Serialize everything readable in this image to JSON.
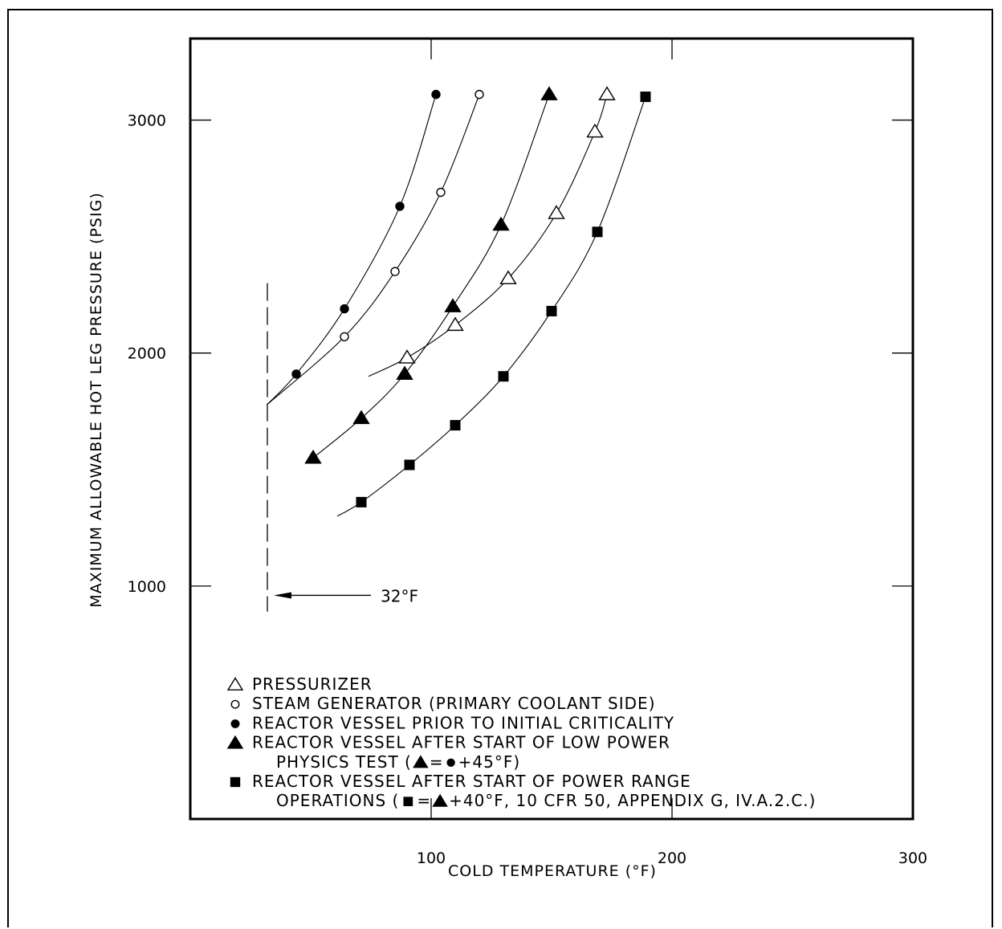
{
  "chart_data": {
    "type": "scatter",
    "title": "",
    "xlabel": "COLD TEMPERATURE (°F)",
    "ylabel": "MAXIMUM ALLOWABLE HOT LEG PRESSURE (PSIG)",
    "xlim": [
      0,
      300
    ],
    "ylim": [
      0,
      3350
    ],
    "x_ticks": [
      100,
      200,
      300
    ],
    "y_ticks": [
      1000,
      2000,
      3000
    ],
    "grid": false,
    "legend_position": "lower-left inside",
    "series": [
      {
        "name": "PRESSURIZER",
        "marker": "open-triangle",
        "points": [
          [
            90,
            1980
          ],
          [
            110,
            2120
          ],
          [
            132,
            2320
          ],
          [
            152,
            2600
          ],
          [
            168,
            2950
          ],
          [
            173,
            3110
          ]
        ],
        "curve": [
          [
            74,
            1900
          ],
          [
            90,
            1980
          ],
          [
            110,
            2120
          ],
          [
            132,
            2320
          ],
          [
            152,
            2600
          ],
          [
            168,
            2950
          ],
          [
            173,
            3110
          ]
        ]
      },
      {
        "name": "STEAM GENERATOR (PRIMARY COOLANT SIDE)",
        "marker": "open-circle",
        "points": [
          [
            64,
            2070
          ],
          [
            85,
            2350
          ],
          [
            104,
            2690
          ],
          [
            120,
            3110
          ]
        ],
        "curve": [
          [
            32,
            1780
          ],
          [
            64,
            2070
          ],
          [
            85,
            2350
          ],
          [
            104,
            2690
          ],
          [
            120,
            3110
          ]
        ]
      },
      {
        "name": "REACTOR VESSEL PRIOR TO INITIAL CRITICALITY",
        "marker": "filled-circle",
        "points": [
          [
            44,
            1910
          ],
          [
            64,
            2190
          ],
          [
            87,
            2630
          ],
          [
            102,
            3110
          ]
        ],
        "curve": [
          [
            32,
            1780
          ],
          [
            44,
            1910
          ],
          [
            64,
            2190
          ],
          [
            87,
            2630
          ],
          [
            102,
            3110
          ]
        ]
      },
      {
        "name": "REACTOR VESSEL AFTER START OF LOW POWER PHYSICS TEST",
        "marker": "filled-triangle",
        "points": [
          [
            51,
            1550
          ],
          [
            71,
            1720
          ],
          [
            89,
            1910
          ],
          [
            109,
            2200
          ],
          [
            129,
            2550
          ],
          [
            149,
            3110
          ]
        ],
        "curve": [
          [
            51,
            1550
          ],
          [
            71,
            1720
          ],
          [
            89,
            1910
          ],
          [
            109,
            2200
          ],
          [
            129,
            2550
          ],
          [
            149,
            3110
          ]
        ]
      },
      {
        "name": "REACTOR VESSEL AFTER START OF POWER RANGE OPERATIONS",
        "marker": "filled-square",
        "points": [
          [
            71,
            1360
          ],
          [
            91,
            1520
          ],
          [
            110,
            1690
          ],
          [
            130,
            1900
          ],
          [
            150,
            2180
          ],
          [
            169,
            2520
          ],
          [
            189,
            3100
          ]
        ],
        "curve": [
          [
            61,
            1300
          ],
          [
            71,
            1360
          ],
          [
            91,
            1520
          ],
          [
            110,
            1690
          ],
          [
            130,
            1900
          ],
          [
            150,
            2180
          ],
          [
            169,
            2520
          ],
          [
            189,
            3100
          ]
        ]
      }
    ],
    "annotations": {
      "limit_line_x": 32,
      "limit_line_y_range": [
        890,
        2300
      ],
      "arrow_label": "32°F",
      "arrow_y": 960,
      "arrow_tail_x": 75
    },
    "legend_lines": [
      {
        "symbol": "open-triangle",
        "text": "PRESSURIZER"
      },
      {
        "symbol": "open-circle",
        "text": "STEAM GENERATOR (PRIMARY COOLANT SIDE)"
      },
      {
        "symbol": "filled-circle",
        "text": "REACTOR VESSEL PRIOR TO INITIAL CRITICALITY"
      },
      {
        "symbol": "filled-triangle",
        "text": "REACTOR VESSEL AFTER START OF LOW POWER"
      },
      {
        "symbol": "",
        "text": "PHYSICS TEST (",
        "suffix_parts": [
          "filled-triangle",
          "=",
          "filled-circle",
          " +45°F)"
        ]
      },
      {
        "symbol": "filled-square",
        "text": "REACTOR VESSEL AFTER START OF POWER RANGE"
      },
      {
        "symbol": "",
        "text": "OPERATIONS (",
        "suffix_parts": [
          "filled-square",
          "=",
          "filled-triangle",
          " +40°F, 10 CFR 50, APPENDIX G, IV.A.2.C.)"
        ]
      }
    ]
  }
}
